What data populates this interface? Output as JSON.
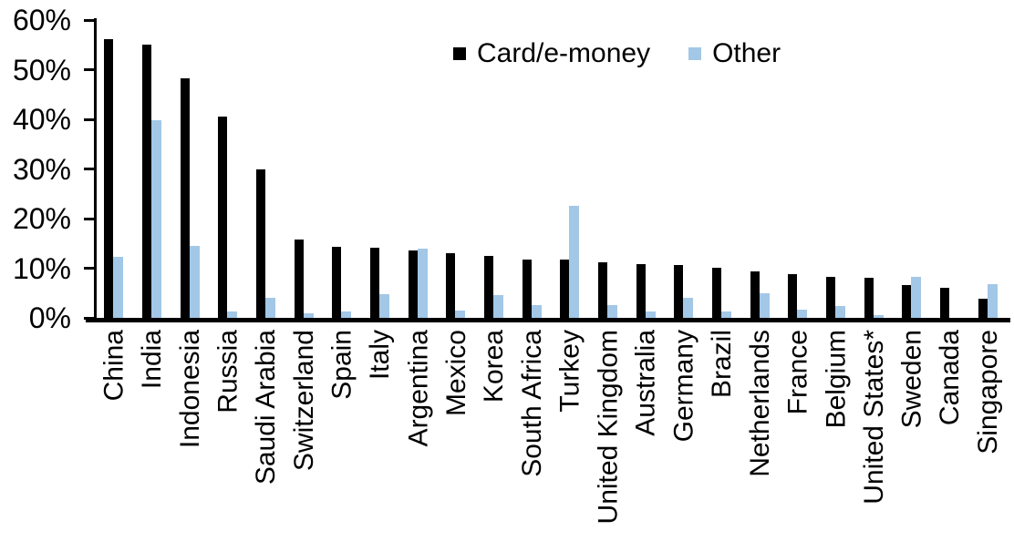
{
  "chart_data": {
    "type": "bar",
    "title": "",
    "xlabel": "",
    "ylabel": "",
    "ylim": [
      0,
      60
    ],
    "ytick_step": 10,
    "ytick_labels": [
      "0%",
      "10%",
      "20%",
      "30%",
      "40%",
      "50%",
      "60%"
    ],
    "grid": false,
    "legend_position": "top-center",
    "categories": [
      "China",
      "India",
      "Indonesia",
      "Russia",
      "Saudi Arabia",
      "Switzerland",
      "Spain",
      "Italy",
      "Argentina",
      "Mexico",
      "Korea",
      "South Africa",
      "Turkey",
      "United Kingdom",
      "Australia",
      "Germany",
      "Brazil",
      "Netherlands",
      "France",
      "Belgium",
      "United States*",
      "Sweden",
      "Canada",
      "Singapore"
    ],
    "series": [
      {
        "name": "Card/e-money",
        "color": "#000000",
        "values": [
          56.2,
          55.0,
          48.3,
          40.5,
          29.9,
          15.7,
          14.3,
          14.1,
          13.5,
          13.0,
          12.4,
          11.8,
          11.7,
          11.2,
          10.9,
          10.7,
          10.1,
          9.4,
          8.8,
          8.2,
          8.0,
          6.7,
          6.1,
          3.9
        ]
      },
      {
        "name": "Other",
        "color": "#A3C7E6",
        "values": [
          12.3,
          39.8,
          14.5,
          1.2,
          4.1,
          0.9,
          1.2,
          4.7,
          14.0,
          1.5,
          4.6,
          2.6,
          22.6,
          2.5,
          1.2,
          4.1,
          1.3,
          4.9,
          1.7,
          2.3,
          0.5,
          8.2,
          0.0,
          6.8
        ]
      }
    ]
  },
  "legend": {
    "card_label": "Card/e-money",
    "other_label": "Other"
  }
}
